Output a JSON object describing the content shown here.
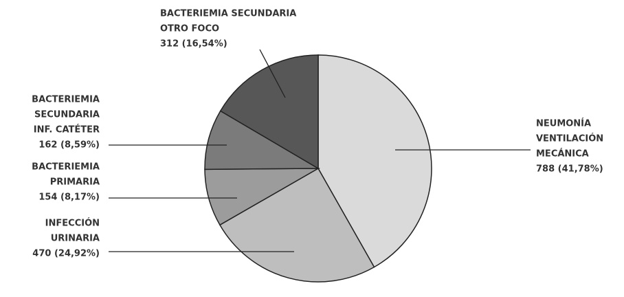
{
  "chart_data": {
    "type": "pie",
    "categories": [
      [
        "NEUMONÍA",
        "VENTILACIÓN",
        "MECÁNICA"
      ],
      [
        "INFECCIÓN",
        "URINARIA"
      ],
      [
        "BACTERIEMIA",
        "PRIMARIA"
      ],
      [
        "BACTERIEMIA",
        "SECUNDARIA",
        "INF. CATÉTER"
      ],
      [
        "BACTERIEMIA SECUNDARIA",
        "OTRO FOCO"
      ]
    ],
    "values": [
      788,
      470,
      154,
      162,
      312
    ],
    "value_labels": [
      "788 (41,78%)",
      "470 (24,92%)",
      "154 (8,17%)",
      "162 (8,59%)",
      "312 (16,54%)"
    ],
    "colors": [
      "#dadada",
      "#bebebe",
      "#9c9c9c",
      "#7b7b7b",
      "#575757"
    ]
  }
}
